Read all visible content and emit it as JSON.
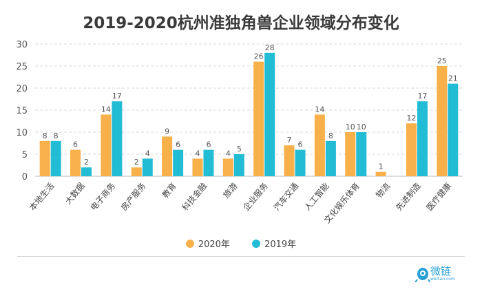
{
  "chart_data": {
    "type": "bar",
    "title": "2019-2020杭州准独角兽企业领域分布变化",
    "categories": [
      "本地生活",
      "大数据",
      "电子商务",
      "房产服务",
      "教育",
      "科技金融",
      "旅游",
      "企业服务",
      "汽车交通",
      "人工智能",
      "文化娱乐体育",
      "物流",
      "先进制造",
      "医疗健康"
    ],
    "series": [
      {
        "name": "2020年",
        "color": "#F8B04A",
        "values": [
          8,
          6,
          14,
          2,
          9,
          4,
          4,
          26,
          7,
          14,
          10,
          1,
          12,
          25
        ]
      },
      {
        "name": "2019年",
        "color": "#22BCD5",
        "values": [
          8,
          2,
          17,
          4,
          6,
          6,
          5,
          28,
          6,
          8,
          10,
          null,
          17,
          21
        ]
      }
    ],
    "ylim": [
      0,
      30
    ],
    "yticks": [
      0,
      5,
      10,
      15,
      20,
      25,
      30
    ],
    "grid": true,
    "legend": "bottom"
  },
  "logo": {
    "name": "微链",
    "url_text": "weilian.com"
  }
}
